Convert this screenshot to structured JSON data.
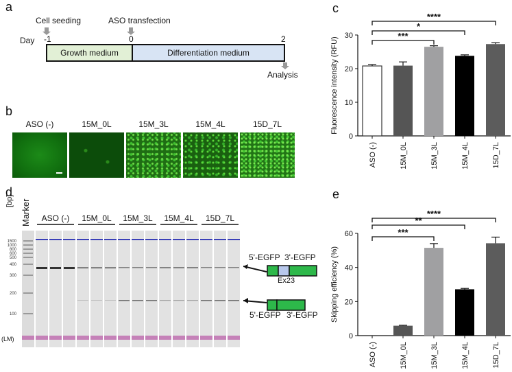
{
  "panel_a": {
    "label": "a",
    "day_label": "Day",
    "events": [
      "Cell seeding",
      "ASO transfection",
      "Analysis"
    ],
    "days": [
      "-1",
      "0",
      "2"
    ],
    "growth": "Growth medium",
    "diff": "Differentiation medium"
  },
  "panel_b": {
    "label": "b",
    "images": [
      "ASO (-)",
      "15M_0L",
      "15M_3L",
      "15M_4L",
      "15D_7L"
    ]
  },
  "panel_d": {
    "label": "d",
    "marker": "Marker",
    "bp": "[bp]",
    "lm": "(LM)",
    "groups": [
      "ASO  (-)",
      "15M_0L",
      "15M_3L",
      "15M_4L",
      "15D_7L"
    ],
    "ladder": [
      "1500",
      "1000",
      "800",
      "600",
      "500",
      "400",
      "300",
      "200",
      "100"
    ],
    "top_left": "5'-EGFP",
    "top_right": "3'-EGFP",
    "exon": "Ex23",
    "bot_left": "5'-EGFP",
    "bot_right": "3'-EGFP"
  },
  "colors": {
    "series": [
      "#ffffff",
      "#555555",
      "#a0a0a2",
      "#000000",
      "#5c5c5c"
    ],
    "blue_marker": "#3a3fb8",
    "lm_band": "#c070b0",
    "egfp": "#2db84a",
    "exon": "#b8c8ec"
  },
  "chart_data": [
    {
      "panel": "c",
      "type": "bar",
      "categories": [
        "ASO (-)",
        "15M_0L",
        "15M_3L",
        "15M_4L",
        "15D_7L"
      ],
      "values": [
        20.8,
        20.9,
        26.5,
        23.8,
        27.3
      ],
      "errors": [
        0.4,
        1.1,
        0.3,
        0.3,
        0.4
      ],
      "ylabel": "Fluorescence intensity (RFU)",
      "ylim": [
        0,
        30
      ],
      "yticks": [
        "0",
        "10",
        "20",
        "30"
      ],
      "significance": [
        "****",
        "*",
        "***"
      ]
    },
    {
      "panel": "e",
      "type": "bar",
      "categories": [
        "ASO (-)",
        "15M_0L",
        "15M_3L",
        "15M_4L",
        "15D_7L"
      ],
      "values": [
        0,
        5.8,
        51.5,
        27.2,
        54.2
      ],
      "errors": [
        0,
        0.3,
        2.5,
        0.5,
        3.6
      ],
      "ylabel": "Skipping efficiency (%)",
      "ylim": [
        0,
        60
      ],
      "yticks": [
        "0",
        "20",
        "40",
        "60"
      ],
      "significance": [
        "****",
        "**",
        "***"
      ]
    }
  ]
}
